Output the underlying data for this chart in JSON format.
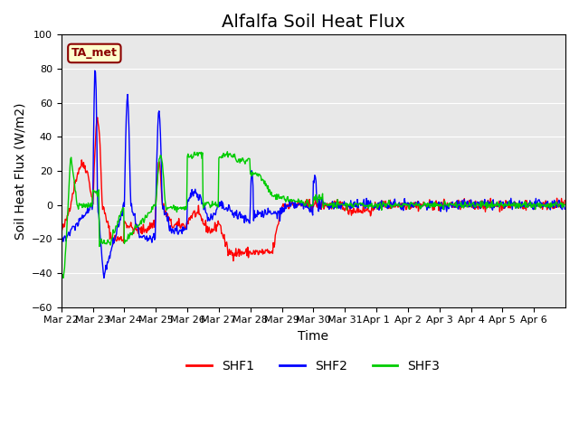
{
  "title": "Alfalfa Soil Heat Flux",
  "ylabel": "Soil Heat Flux (W/m2)",
  "xlabel": "Time",
  "ylim": [
    -60,
    100
  ],
  "annotation_text": "TA_met",
  "legend_labels": [
    "SHF1",
    "SHF2",
    "SHF3"
  ],
  "line_colors": [
    "#ff0000",
    "#0000ff",
    "#00cc00"
  ],
  "background_color": "#e8e8e8",
  "fig_background": "#ffffff",
  "title_fontsize": 14,
  "axis_fontsize": 10,
  "tick_fontsize": 8,
  "n_days": 16,
  "x_tick_labels": [
    "Mar 22",
    "Mar 23",
    "Mar 24",
    "Mar 25",
    "Mar 26",
    "Mar 27",
    "Mar 28",
    "Mar 29",
    "Mar 30",
    "Mar 31",
    "Apr 1",
    "Apr 2",
    "Apr 3",
    "Apr 4",
    "Apr 5",
    "Apr 6"
  ],
  "yticks": [
    -60,
    -40,
    -20,
    0,
    20,
    40,
    60,
    80,
    100
  ]
}
